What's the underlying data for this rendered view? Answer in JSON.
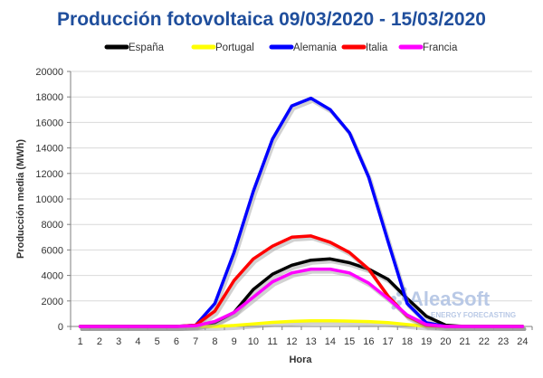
{
  "chart_data": {
    "type": "line",
    "title": "Producción fotovoltaica 09/03/2020 - 15/03/2020",
    "xlabel": "Hora",
    "ylabel": "Producción media (MWh)",
    "x": [
      1,
      2,
      3,
      4,
      5,
      6,
      7,
      8,
      9,
      10,
      11,
      12,
      13,
      14,
      15,
      16,
      17,
      18,
      19,
      20,
      21,
      22,
      23,
      24
    ],
    "ylim": [
      0,
      20000
    ],
    "yticks": [
      0,
      2000,
      4000,
      6000,
      8000,
      10000,
      12000,
      14000,
      16000,
      18000,
      20000
    ],
    "grid": true,
    "legend_position": "top",
    "series": [
      {
        "name": "España",
        "color": "#000000",
        "values": [
          0,
          0,
          0,
          0,
          0,
          0,
          50,
          300,
          1100,
          2900,
          4100,
          4800,
          5200,
          5300,
          5000,
          4500,
          3700,
          2200,
          800,
          100,
          0,
          0,
          0,
          0
        ]
      },
      {
        "name": "Portugal",
        "color": "#ffff00",
        "values": [
          0,
          0,
          0,
          0,
          0,
          0,
          0,
          10,
          80,
          200,
          320,
          400,
          450,
          450,
          420,
          380,
          300,
          150,
          30,
          0,
          0,
          0,
          0,
          0
        ]
      },
      {
        "name": "Alemania",
        "color": "#0000ff",
        "values": [
          0,
          0,
          0,
          0,
          0,
          0,
          100,
          1800,
          5800,
          10600,
          14700,
          17300,
          17900,
          17000,
          15200,
          11700,
          6700,
          1800,
          300,
          0,
          0,
          0,
          0,
          0
        ]
      },
      {
        "name": "Italia",
        "color": "#ff0000",
        "values": [
          0,
          0,
          0,
          0,
          0,
          0,
          100,
          1200,
          3600,
          5300,
          6300,
          7000,
          7100,
          6600,
          5800,
          4500,
          2400,
          800,
          80,
          0,
          0,
          0,
          0,
          0
        ]
      },
      {
        "name": "Francia",
        "color": "#ff00ff",
        "values": [
          0,
          0,
          0,
          0,
          0,
          0,
          50,
          400,
          1100,
          2300,
          3500,
          4200,
          4500,
          4500,
          4200,
          3400,
          2200,
          900,
          150,
          0,
          0,
          0,
          0,
          0
        ]
      }
    ]
  },
  "watermark": {
    "name": "AleaSoft",
    "subtitle": "ENERGY FORECASTING"
  },
  "colors": {
    "title": "#1f4e9c",
    "grid": "#d9d9d9",
    "axis": "#7f7f7f",
    "shadow": "#9a9a9a"
  }
}
